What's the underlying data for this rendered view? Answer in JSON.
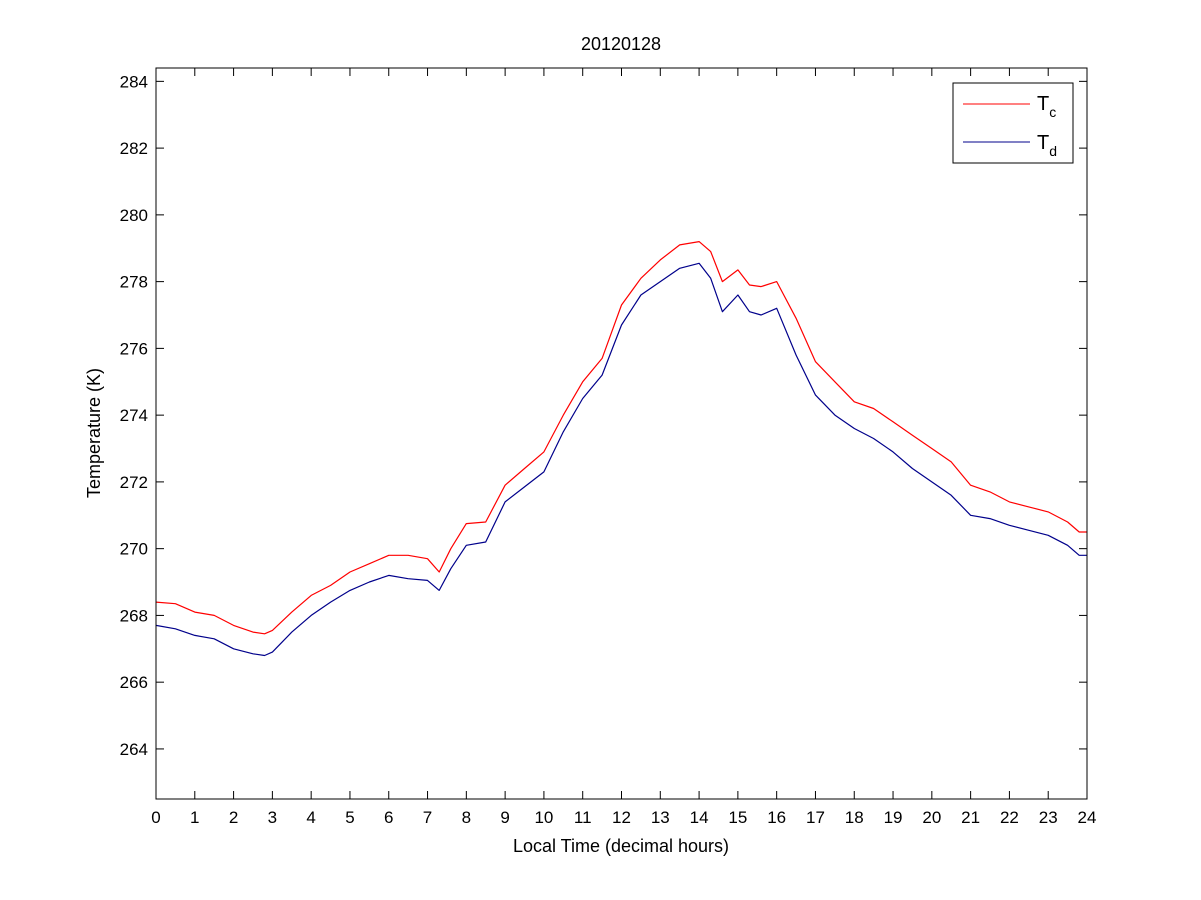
{
  "chart_data": {
    "type": "line",
    "title": "20120128",
    "xlabel": "Local Time (decimal hours)",
    "ylabel": "Temperature (K)",
    "xlim": [
      0,
      24
    ],
    "ylim": [
      262.5,
      284.4
    ],
    "xticks": [
      0,
      1,
      2,
      3,
      4,
      5,
      6,
      7,
      8,
      9,
      10,
      11,
      12,
      13,
      14,
      15,
      16,
      17,
      18,
      19,
      20,
      21,
      22,
      23,
      24
    ],
    "yticks": [
      264,
      266,
      268,
      270,
      272,
      274,
      276,
      278,
      280,
      282,
      284
    ],
    "grid": false,
    "legend_position": "top-right",
    "series": [
      {
        "name": "T",
        "subscript": "c",
        "color": "#ff0000",
        "points": [
          [
            0,
            268.4
          ],
          [
            0.5,
            268.35
          ],
          [
            1,
            268.1
          ],
          [
            1.5,
            268.0
          ],
          [
            2,
            267.7
          ],
          [
            2.5,
            267.5
          ],
          [
            2.8,
            267.45
          ],
          [
            3,
            267.55
          ],
          [
            3.5,
            268.1
          ],
          [
            4,
            268.6
          ],
          [
            4.5,
            268.9
          ],
          [
            5,
            269.3
          ],
          [
            5.5,
            269.55
          ],
          [
            6,
            269.8
          ],
          [
            6.5,
            269.8
          ],
          [
            7,
            269.7
          ],
          [
            7.3,
            269.3
          ],
          [
            7.6,
            270.0
          ],
          [
            8,
            270.75
          ],
          [
            8.5,
            270.8
          ],
          [
            9,
            271.9
          ],
          [
            9.5,
            272.4
          ],
          [
            10,
            272.9
          ],
          [
            10.5,
            274.0
          ],
          [
            11,
            275.0
          ],
          [
            11.5,
            275.7
          ],
          [
            12,
            277.3
          ],
          [
            12.5,
            278.1
          ],
          [
            13,
            278.65
          ],
          [
            13.5,
            279.1
          ],
          [
            14,
            279.2
          ],
          [
            14.3,
            278.9
          ],
          [
            14.6,
            278.0
          ],
          [
            15,
            278.35
          ],
          [
            15.3,
            277.9
          ],
          [
            15.6,
            277.85
          ],
          [
            16,
            278.0
          ],
          [
            16.5,
            276.9
          ],
          [
            17,
            275.6
          ],
          [
            17.5,
            275.0
          ],
          [
            18,
            274.4
          ],
          [
            18.5,
            274.2
          ],
          [
            19,
            273.8
          ],
          [
            19.5,
            273.4
          ],
          [
            20,
            273.0
          ],
          [
            20.5,
            272.6
          ],
          [
            21,
            271.9
          ],
          [
            21.5,
            271.7
          ],
          [
            22,
            271.4
          ],
          [
            22.5,
            271.25
          ],
          [
            23,
            271.1
          ],
          [
            23.5,
            270.8
          ],
          [
            23.8,
            270.5
          ],
          [
            24,
            270.5
          ]
        ]
      },
      {
        "name": "T",
        "subscript": "d",
        "color": "#00008b",
        "points": [
          [
            0,
            267.7
          ],
          [
            0.5,
            267.6
          ],
          [
            1,
            267.4
          ],
          [
            1.5,
            267.3
          ],
          [
            2,
            267.0
          ],
          [
            2.5,
            266.85
          ],
          [
            2.8,
            266.8
          ],
          [
            3,
            266.9
          ],
          [
            3.5,
            267.5
          ],
          [
            4,
            268.0
          ],
          [
            4.5,
            268.4
          ],
          [
            5,
            268.75
          ],
          [
            5.5,
            269.0
          ],
          [
            6,
            269.2
          ],
          [
            6.5,
            269.1
          ],
          [
            7,
            269.05
          ],
          [
            7.3,
            268.75
          ],
          [
            7.6,
            269.4
          ],
          [
            8,
            270.1
          ],
          [
            8.5,
            270.2
          ],
          [
            9,
            271.4
          ],
          [
            9.5,
            271.85
          ],
          [
            10,
            272.3
          ],
          [
            10.5,
            273.5
          ],
          [
            11,
            274.5
          ],
          [
            11.5,
            275.2
          ],
          [
            12,
            276.7
          ],
          [
            12.5,
            277.6
          ],
          [
            13,
            278.0
          ],
          [
            13.5,
            278.4
          ],
          [
            14,
            278.55
          ],
          [
            14.3,
            278.1
          ],
          [
            14.6,
            277.1
          ],
          [
            15,
            277.6
          ],
          [
            15.3,
            277.1
          ],
          [
            15.6,
            277.0
          ],
          [
            16,
            277.2
          ],
          [
            16.5,
            275.8
          ],
          [
            17,
            274.6
          ],
          [
            17.5,
            274.0
          ],
          [
            18,
            273.6
          ],
          [
            18.5,
            273.3
          ],
          [
            19,
            272.9
          ],
          [
            19.5,
            272.4
          ],
          [
            20,
            272.0
          ],
          [
            20.5,
            271.6
          ],
          [
            21,
            271.0
          ],
          [
            21.5,
            270.9
          ],
          [
            22,
            270.7
          ],
          [
            22.5,
            270.55
          ],
          [
            23,
            270.4
          ],
          [
            23.5,
            270.1
          ],
          [
            23.8,
            269.8
          ],
          [
            24,
            269.8
          ]
        ]
      }
    ]
  }
}
